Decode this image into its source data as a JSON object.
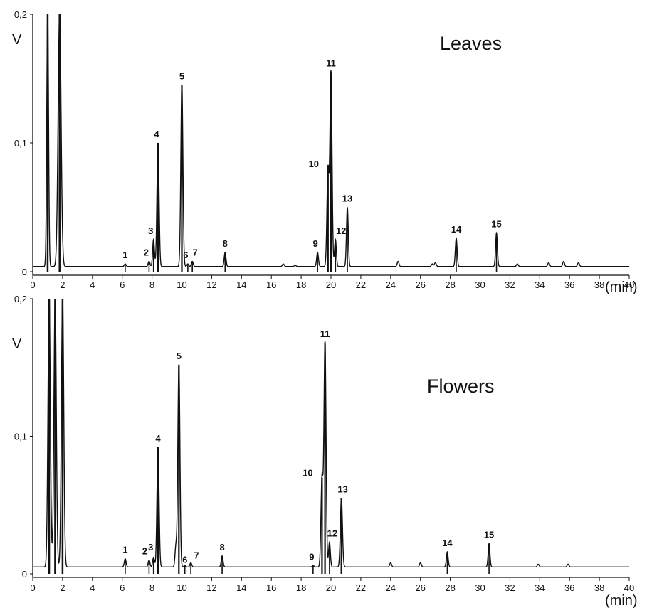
{
  "chart_data": [
    {
      "type": "line",
      "title": "Leaves",
      "xlabel": "(min)",
      "ylabel": "V",
      "xlim": [
        0,
        40
      ],
      "ylim": [
        0,
        0.2
      ],
      "x_ticks": [
        "0",
        "2",
        "4",
        "6",
        "8",
        "10",
        "12",
        "14",
        "16",
        "18",
        "20",
        "22",
        "24",
        "26",
        "28",
        "30",
        "32",
        "34",
        "36",
        "38",
        "40"
      ],
      "y_ticks": [
        {
          "value": 0,
          "label": "0"
        },
        {
          "value": 0.1,
          "label": "0,1"
        },
        {
          "value": 0.2,
          "label": "0,2"
        }
      ],
      "baseline": 0.004,
      "solvent_peaks": [
        {
          "x": 1.0,
          "y": 0.2,
          "w": 0.06
        },
        {
          "x": 1.8,
          "y": 0.2,
          "w": 0.1
        }
      ],
      "peaks": [
        {
          "label": "1",
          "x": 6.2,
          "y": 0.006
        },
        {
          "label": "2",
          "x": 7.8,
          "y": 0.008
        },
        {
          "label": "3",
          "x": 8.1,
          "y": 0.025
        },
        {
          "label": "4",
          "x": 8.4,
          "y": 0.1
        },
        {
          "label": "5",
          "x": 10.0,
          "y": 0.145
        },
        {
          "label": "6",
          "x": 10.4,
          "y": 0.006
        },
        {
          "label": "7",
          "x": 10.7,
          "y": 0.008
        },
        {
          "label": "8",
          "x": 12.9,
          "y": 0.015
        },
        {
          "label": "9",
          "x": 19.1,
          "y": 0.015
        },
        {
          "label": "10",
          "x": 19.8,
          "y": 0.08
        },
        {
          "label": "11",
          "x": 20.0,
          "y": 0.155
        },
        {
          "label": "12",
          "x": 20.3,
          "y": 0.025
        },
        {
          "label": "13",
          "x": 21.1,
          "y": 0.05
        },
        {
          "label": "14",
          "x": 28.4,
          "y": 0.026
        },
        {
          "label": "15",
          "x": 31.1,
          "y": 0.03
        }
      ],
      "minor_peaks": [
        {
          "x": 24.5,
          "y": 0.008
        },
        {
          "x": 26.8,
          "y": 0.006
        },
        {
          "x": 27.0,
          "y": 0.007
        },
        {
          "x": 32.5,
          "y": 0.006
        },
        {
          "x": 34.6,
          "y": 0.007
        },
        {
          "x": 35.6,
          "y": 0.008
        },
        {
          "x": 36.6,
          "y": 0.007
        },
        {
          "x": 16.8,
          "y": 0.006
        },
        {
          "x": 17.6,
          "y": 0.005
        }
      ]
    },
    {
      "type": "line",
      "title": "Flowers",
      "xlabel": "(min)",
      "ylabel": "V",
      "xlim": [
        0,
        40
      ],
      "ylim": [
        0,
        0.2
      ],
      "x_ticks": [
        "0",
        "2",
        "4",
        "6",
        "8",
        "10",
        "12",
        "14",
        "16",
        "18",
        "20",
        "22",
        "24",
        "26",
        "28",
        "30",
        "32",
        "34",
        "36",
        "38",
        "40"
      ],
      "y_ticks": [
        {
          "value": 0,
          "label": "0"
        },
        {
          "value": 0.1,
          "label": "0,1"
        },
        {
          "value": 0.2,
          "label": "0,2"
        }
      ],
      "baseline": 0.005,
      "solvent_peaks": [
        {
          "x": 1.1,
          "y": 0.2,
          "w": 0.08
        },
        {
          "x": 1.5,
          "y": 0.2,
          "w": 0.08
        },
        {
          "x": 2.0,
          "y": 0.2,
          "w": 0.08
        }
      ],
      "peaks": [
        {
          "label": "1",
          "x": 6.2,
          "y": 0.011
        },
        {
          "label": "2",
          "x": 7.8,
          "y": 0.01
        },
        {
          "label": "3",
          "x": 8.1,
          "y": 0.012
        },
        {
          "label": "4",
          "x": 8.4,
          "y": 0.092
        },
        {
          "label": "5",
          "x": 9.8,
          "y": 0.152
        },
        {
          "label": "6",
          "x": 10.2,
          "y": 0.006
        },
        {
          "label": "7",
          "x": 10.6,
          "y": 0.008
        },
        {
          "label": "8",
          "x": 12.7,
          "y": 0.013
        },
        {
          "label": "9",
          "x": 18.8,
          "y": 0.006
        },
        {
          "label": "10",
          "x": 19.4,
          "y": 0.07
        },
        {
          "label": "11",
          "x": 19.6,
          "y": 0.168
        },
        {
          "label": "12",
          "x": 19.9,
          "y": 0.023
        },
        {
          "label": "13",
          "x": 20.7,
          "y": 0.055
        },
        {
          "label": "14",
          "x": 27.8,
          "y": 0.016
        },
        {
          "label": "15",
          "x": 30.6,
          "y": 0.022
        }
      ],
      "minor_peaks": [
        {
          "x": 9.6,
          "y": 0.02
        },
        {
          "x": 24.0,
          "y": 0.008
        },
        {
          "x": 26.0,
          "y": 0.008
        },
        {
          "x": 33.9,
          "y": 0.007
        },
        {
          "x": 35.9,
          "y": 0.007
        }
      ]
    }
  ]
}
